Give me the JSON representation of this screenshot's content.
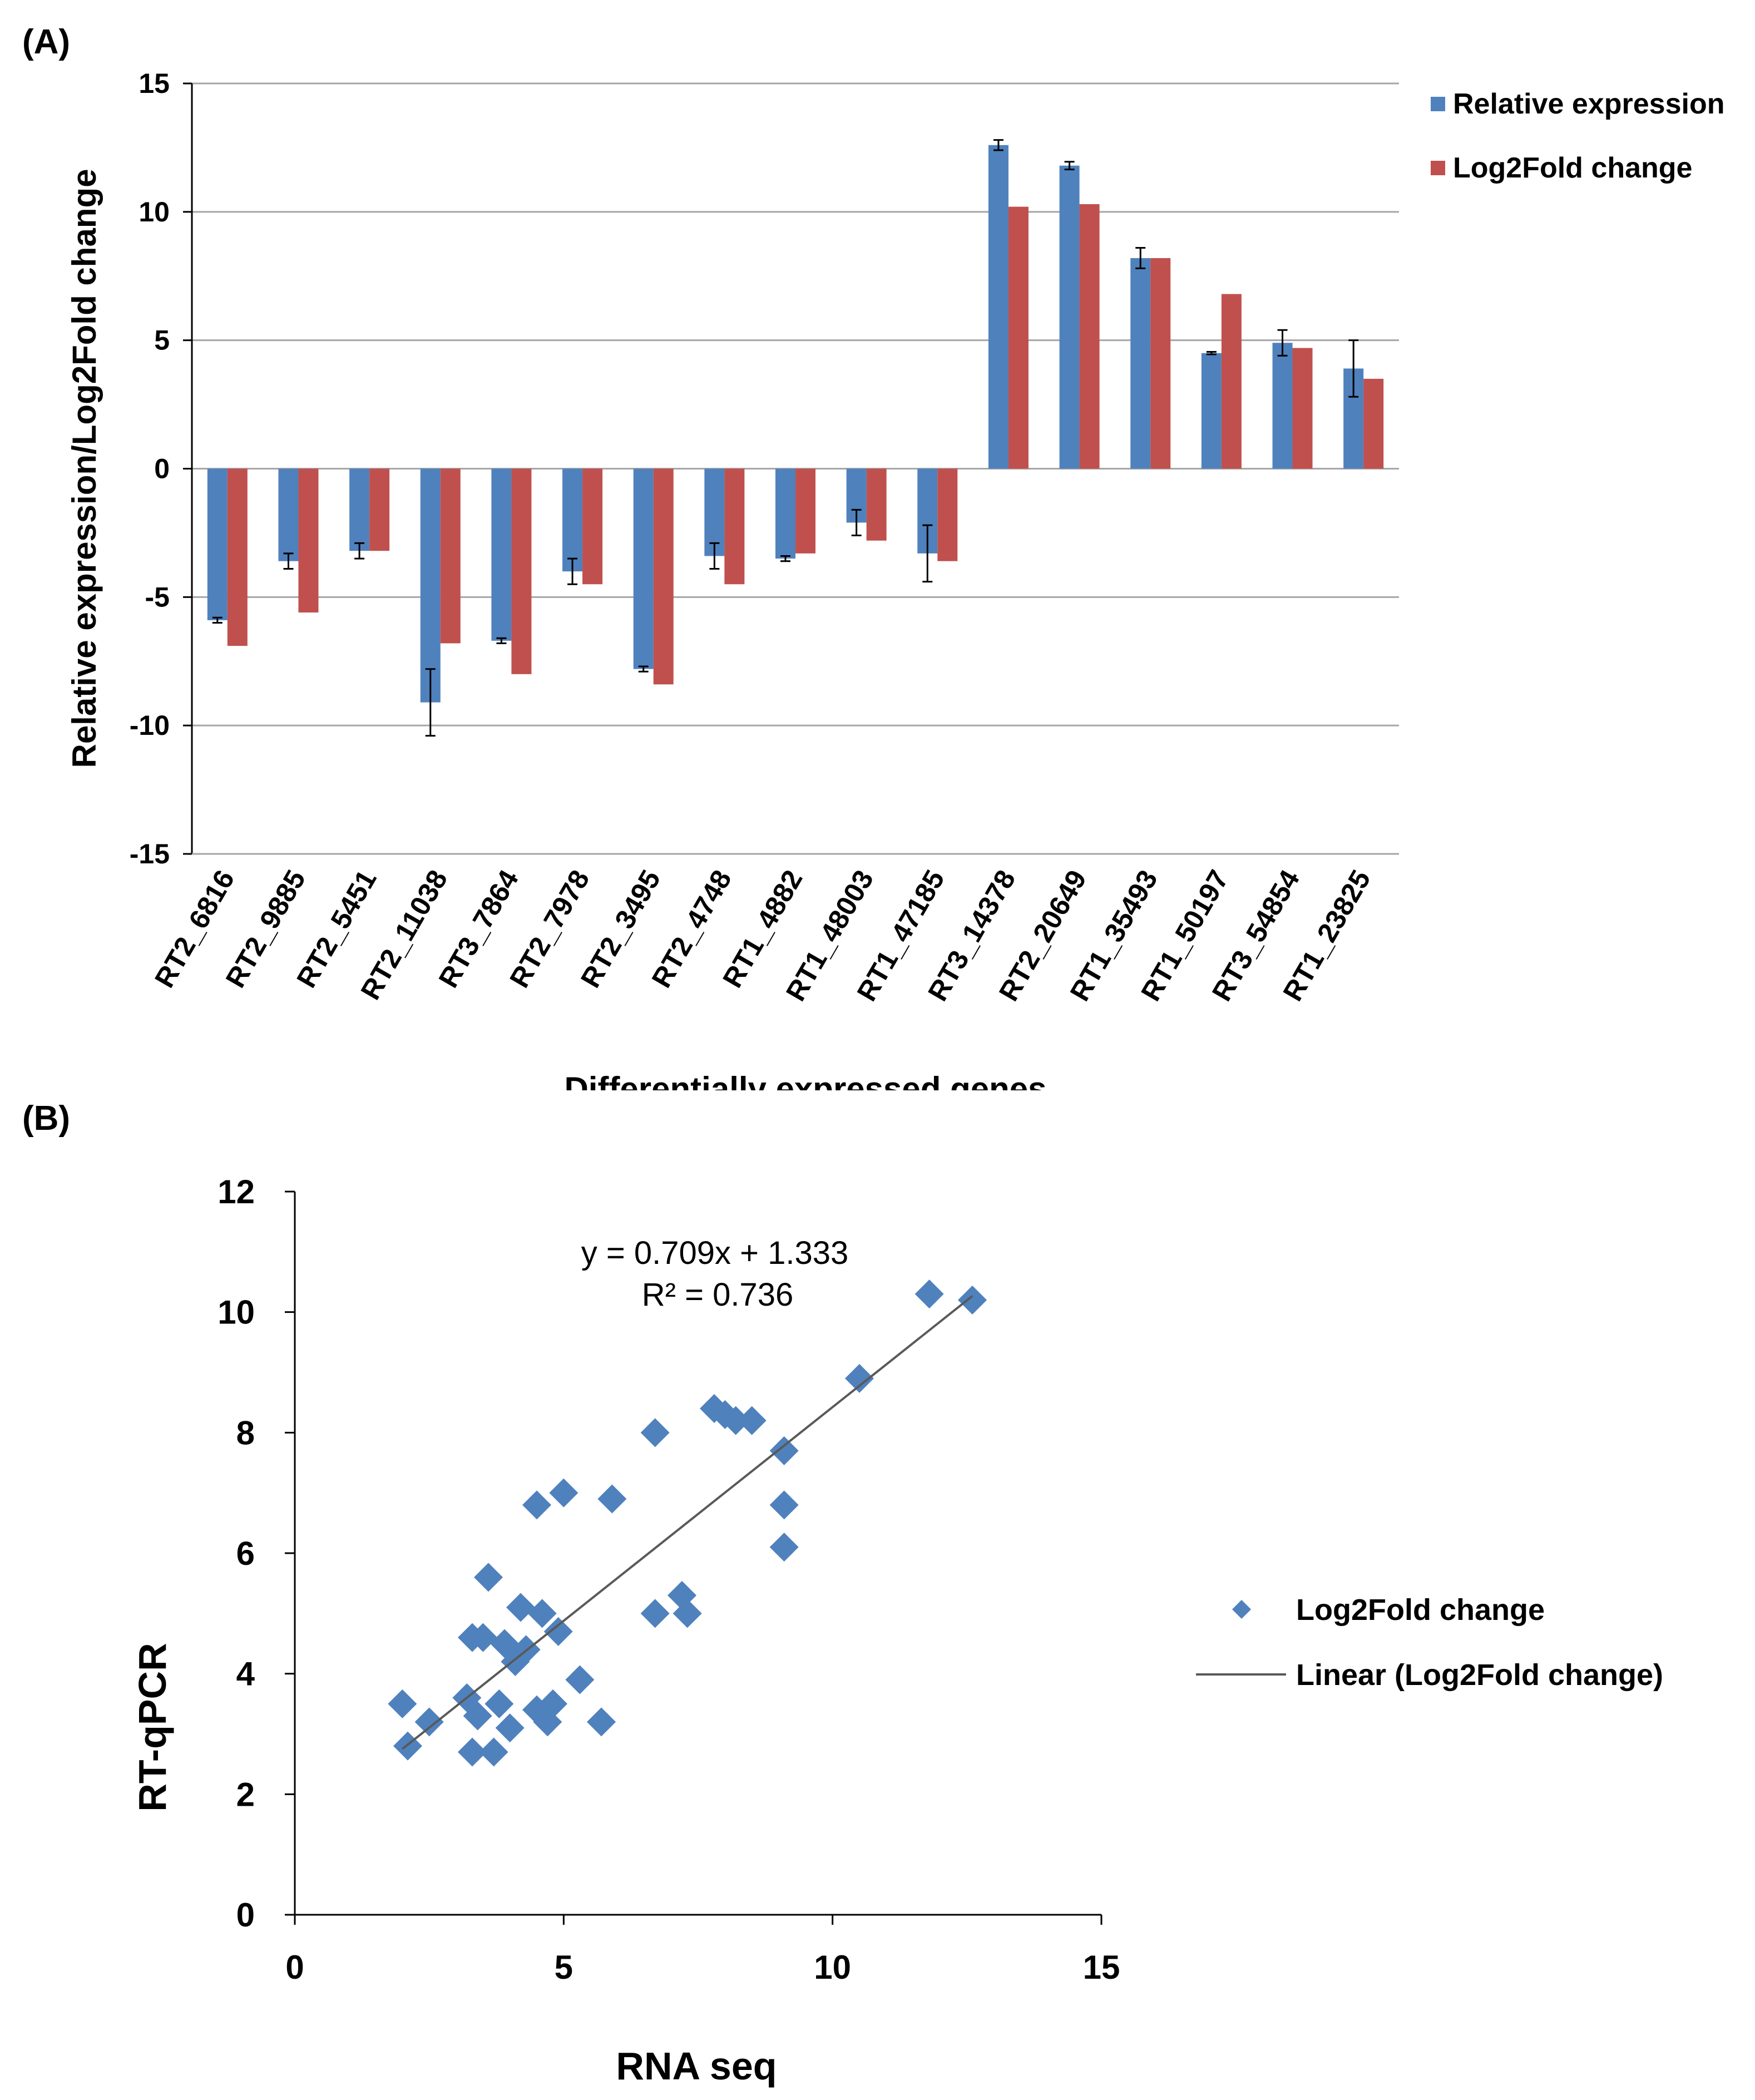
{
  "panels": {
    "a_label": "(A)",
    "b_label": "(B)"
  },
  "chart_data": [
    {
      "type": "bar",
      "title": "",
      "xlabel": "Differentially expressed genes",
      "ylabel": "Relative expression/Log2Fold change",
      "ylim": [
        -15,
        15
      ],
      "yticks": [
        15,
        10,
        5,
        0,
        -5,
        -10,
        -15
      ],
      "grid": true,
      "legend_position": "top-right",
      "categories": [
        "RT2_6816",
        "RT2_9885",
        "RT2_5451",
        "RT2_11038",
        "RT3_7864",
        "RT2_7978",
        "RT2_3495",
        "RT2_4748",
        "RT1_4882",
        "RT1_48003",
        "RT1_47185",
        "RT3_14378",
        "RT2_20649",
        "RT1_35493",
        "RT1_50197",
        "RT3_54854",
        "RT1_23825"
      ],
      "series": [
        {
          "name": "Relative expression",
          "color": "#4F81BD",
          "values": [
            -5.9,
            -3.6,
            -3.2,
            -9.1,
            -6.7,
            -4.0,
            -7.8,
            -3.4,
            -3.5,
            -2.1,
            -3.3,
            12.6,
            11.8,
            8.2,
            4.5,
            4.9,
            3.9
          ],
          "errors": [
            0.1,
            0.3,
            0.3,
            1.3,
            0.1,
            0.5,
            0.1,
            0.5,
            0.1,
            0.5,
            1.1,
            0.2,
            0.15,
            0.4,
            0.05,
            0.5,
            1.1
          ]
        },
        {
          "name": "Log2Fold change",
          "color": "#C0504D",
          "values": [
            -6.9,
            -5.6,
            -3.2,
            -6.8,
            -8.0,
            -4.5,
            -8.4,
            -4.5,
            -3.3,
            -2.8,
            -3.6,
            10.2,
            10.3,
            8.2,
            6.8,
            4.7,
            3.5
          ]
        }
      ]
    },
    {
      "type": "scatter",
      "title": "",
      "xlabel": "RNA seq",
      "ylabel": "RT-qPCR",
      "xlim": [
        0,
        15
      ],
      "ylim": [
        0,
        12
      ],
      "xticks": [
        0,
        5,
        10,
        15
      ],
      "yticks": [
        0,
        2,
        4,
        6,
        8,
        10,
        12
      ],
      "grid": false,
      "legend_position": "right",
      "equation": "y = 0.709x  + 1.333",
      "r_squared": "R² = 0.736",
      "series": [
        {
          "name": "Log2Fold change",
          "color": "#4F81BD",
          "points": [
            [
              2.0,
              3.5
            ],
            [
              2.1,
              2.8
            ],
            [
              2.5,
              3.2
            ],
            [
              3.2,
              3.6
            ],
            [
              3.3,
              4.6
            ],
            [
              3.3,
              2.7
            ],
            [
              3.4,
              3.3
            ],
            [
              3.5,
              4.6
            ],
            [
              3.6,
              5.6
            ],
            [
              3.7,
              2.7
            ],
            [
              3.8,
              3.5
            ],
            [
              3.9,
              4.5
            ],
            [
              4.0,
              3.1
            ],
            [
              4.1,
              4.2
            ],
            [
              4.2,
              5.1
            ],
            [
              4.3,
              4.4
            ],
            [
              4.5,
              3.4
            ],
            [
              4.5,
              6.8
            ],
            [
              4.6,
              5.0
            ],
            [
              4.7,
              3.2
            ],
            [
              4.8,
              3.5
            ],
            [
              4.9,
              4.7
            ],
            [
              5.0,
              7.0
            ],
            [
              5.3,
              3.9
            ],
            [
              5.7,
              3.2
            ],
            [
              5.9,
              6.9
            ],
            [
              6.7,
              8.0
            ],
            [
              6.7,
              5.0
            ],
            [
              7.2,
              5.3
            ],
            [
              7.3,
              5.0
            ],
            [
              7.8,
              8.4
            ],
            [
              8.0,
              8.3
            ],
            [
              8.2,
              8.2
            ],
            [
              8.5,
              8.2
            ],
            [
              9.1,
              7.7
            ],
            [
              9.1,
              6.8
            ],
            [
              9.1,
              6.1
            ],
            [
              10.5,
              8.9
            ],
            [
              11.8,
              10.3
            ],
            [
              12.6,
              10.2
            ]
          ]
        },
        {
          "name": "Linear (Log2Fold change)",
          "color": "#595959",
          "type": "line",
          "slope": 0.709,
          "intercept": 1.333,
          "x_range": [
            2.0,
            12.6
          ]
        }
      ]
    }
  ]
}
